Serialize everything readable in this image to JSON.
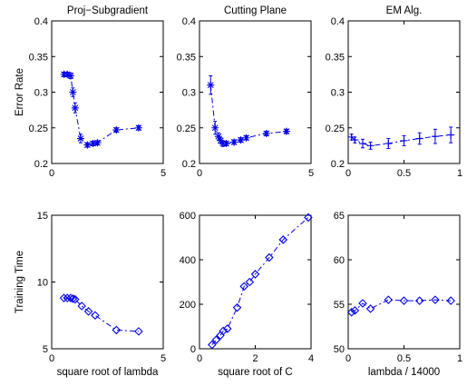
{
  "chart_data": [
    {
      "type": "line",
      "title": "Proj−Subgradient",
      "xlabel": "",
      "ylabel": "Error Rate",
      "xlim": [
        0,
        5
      ],
      "ylim": [
        0.2,
        0.4
      ],
      "xticks": [
        0,
        5
      ],
      "yticks": [
        0.2,
        0.25,
        0.3,
        0.35,
        0.4
      ],
      "yticklabels": [
        "0.2",
        "0.25",
        "0.3",
        "0.35",
        "0.4"
      ],
      "marker": "asterisk",
      "x": [
        0.55,
        0.7,
        0.85,
        0.95,
        1.05,
        1.3,
        1.6,
        1.85,
        2.05,
        2.9,
        3.9
      ],
      "y": [
        0.325,
        0.325,
        0.323,
        0.3,
        0.278,
        0.235,
        0.226,
        0.228,
        0.229,
        0.247,
        0.25
      ],
      "err": [
        0.003,
        0.003,
        0.004,
        0.006,
        0.007,
        0.006,
        0.003,
        0.003,
        0.003,
        0.003,
        0.003
      ]
    },
    {
      "type": "line",
      "title": "Cutting Plane",
      "xlabel": "",
      "ylabel": "",
      "xlim": [
        0,
        5
      ],
      "ylim": [
        0.2,
        0.4
      ],
      "xticks": [
        0,
        5
      ],
      "yticks": [
        0.2,
        0.25,
        0.3,
        0.35,
        0.4
      ],
      "yticklabels": [
        "0.2",
        "0.25",
        "0.3",
        "0.35",
        "0.4"
      ],
      "marker": "asterisk",
      "x": [
        0.5,
        0.7,
        0.85,
        0.95,
        1.05,
        1.2,
        1.55,
        1.85,
        2.1,
        3.0,
        3.9
      ],
      "y": [
        0.31,
        0.25,
        0.238,
        0.232,
        0.228,
        0.228,
        0.23,
        0.233,
        0.236,
        0.242,
        0.245
      ],
      "err": [
        0.013,
        0.009,
        0.005,
        0.004,
        0.004,
        0.003,
        0.003,
        0.003,
        0.003,
        0.003,
        0.003
      ]
    },
    {
      "type": "line",
      "title": "EM Alg.",
      "xlabel": "",
      "ylabel": "",
      "xlim": [
        0,
        1
      ],
      "ylim": [
        0.2,
        0.4
      ],
      "xticks": [
        0,
        0.5,
        1
      ],
      "yticks": [
        0.2,
        0.25,
        0.3,
        0.35,
        0.4
      ],
      "yticklabels": [
        "0.2",
        "0.25",
        "0.3",
        "0.35",
        "0.4"
      ],
      "marker": "plus",
      "x": [
        0.03,
        0.06,
        0.13,
        0.2,
        0.36,
        0.5,
        0.64,
        0.78,
        0.92
      ],
      "y": [
        0.237,
        0.233,
        0.228,
        0.225,
        0.228,
        0.232,
        0.235,
        0.238,
        0.24
      ],
      "err": [
        0.004,
        0.004,
        0.006,
        0.005,
        0.007,
        0.007,
        0.008,
        0.01,
        0.011
      ]
    },
    {
      "type": "line",
      "title": "",
      "xlabel": "square root of lambda",
      "ylabel": "Training Time",
      "xlim": [
        0,
        5
      ],
      "ylim": [
        5,
        15
      ],
      "xticks": [
        0,
        5
      ],
      "yticks": [
        5,
        10,
        15
      ],
      "yticklabels": [
        "5",
        "10",
        "15"
      ],
      "marker": "diamond",
      "x": [
        0.55,
        0.7,
        0.85,
        0.95,
        1.05,
        1.35,
        1.65,
        1.95,
        2.9,
        3.9
      ],
      "y": [
        8.8,
        8.8,
        8.8,
        8.75,
        8.7,
        8.2,
        7.8,
        7.5,
        6.4,
        6.3
      ]
    },
    {
      "type": "line",
      "title": "",
      "xlabel": "square root of C",
      "ylabel": "",
      "xlim": [
        0,
        4
      ],
      "ylim": [
        0,
        600
      ],
      "xticks": [
        0,
        2,
        4
      ],
      "yticks": [
        0,
        200,
        400,
        600
      ],
      "yticklabels": [
        "0",
        "200",
        "400",
        "600"
      ],
      "marker": "diamond",
      "x": [
        0.45,
        0.6,
        0.75,
        0.85,
        1.0,
        1.35,
        1.6,
        1.8,
        2.0,
        2.5,
        3.0,
        3.9
      ],
      "y": [
        18,
        40,
        60,
        80,
        90,
        185,
        280,
        300,
        335,
        410,
        490,
        590
      ]
    },
    {
      "type": "line",
      "title": "",
      "xlabel": "lambda / 14000",
      "ylabel": "",
      "xlim": [
        0,
        1
      ],
      "ylim": [
        50,
        65
      ],
      "xticks": [
        0,
        0.5,
        1
      ],
      "yticks": [
        50,
        55,
        60,
        65
      ],
      "yticklabels": [
        "50",
        "55",
        "60",
        "65"
      ],
      "marker": "diamond",
      "x": [
        0.03,
        0.06,
        0.13,
        0.2,
        0.36,
        0.5,
        0.64,
        0.78,
        0.92
      ],
      "y": [
        54.1,
        54.3,
        55.1,
        54.5,
        55.5,
        55.4,
        55.4,
        55.5,
        55.4
      ]
    }
  ]
}
